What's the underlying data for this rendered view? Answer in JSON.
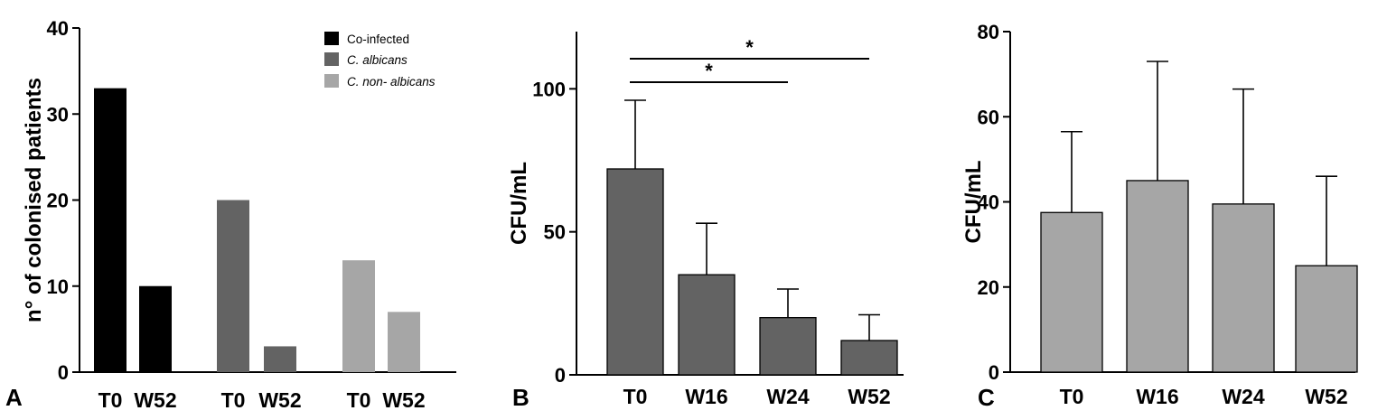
{
  "chart_data": [
    {
      "panel": "A",
      "type": "bar",
      "ylabel": "n° of colonised patients",
      "ylim": [
        0,
        40
      ],
      "yticks": [
        0,
        10,
        20,
        30,
        40
      ],
      "groups": [
        {
          "categories": [
            "T0",
            "W52"
          ],
          "series_index": 0
        },
        {
          "categories": [
            "T0",
            "W52"
          ],
          "series_index": 1
        },
        {
          "categories": [
            "T0",
            "W52"
          ],
          "series_index": 2
        }
      ],
      "series": [
        {
          "name": "Co-infected",
          "values": [
            33,
            10
          ],
          "color": "#000000",
          "italic": false
        },
        {
          "name": "C. albicans",
          "values": [
            20,
            3
          ],
          "color": "#636363",
          "italic": true
        },
        {
          "name": "C. non- albicans",
          "values": [
            13,
            7
          ],
          "color": "#a6a6a6",
          "italic": true
        }
      ],
      "legend": "top-right",
      "grid": false
    },
    {
      "panel": "B",
      "type": "bar",
      "ylabel": "CFU/mL",
      "ylim": [
        0,
        120
      ],
      "yticks": [
        0,
        50,
        100
      ],
      "categories": [
        "T0",
        "W16",
        "W24",
        "W52"
      ],
      "values": [
        72,
        35,
        20,
        12
      ],
      "errors": [
        24,
        18,
        10,
        9
      ],
      "color": "#636363",
      "significance": [
        {
          "from": "T0",
          "to": "W24",
          "label": "*"
        },
        {
          "from": "T0",
          "to": "W52",
          "label": "*"
        }
      ],
      "grid": false
    },
    {
      "panel": "C",
      "type": "bar",
      "ylabel": "CFU/mL",
      "ylim": [
        0,
        80
      ],
      "yticks": [
        0,
        20,
        40,
        60,
        80
      ],
      "categories": [
        "T0",
        "W16",
        "W24",
        "W52"
      ],
      "values": [
        37.5,
        45,
        39.5,
        25
      ],
      "errors": [
        19,
        28,
        27,
        21
      ],
      "color": "#a6a6a6",
      "grid": false
    }
  ]
}
